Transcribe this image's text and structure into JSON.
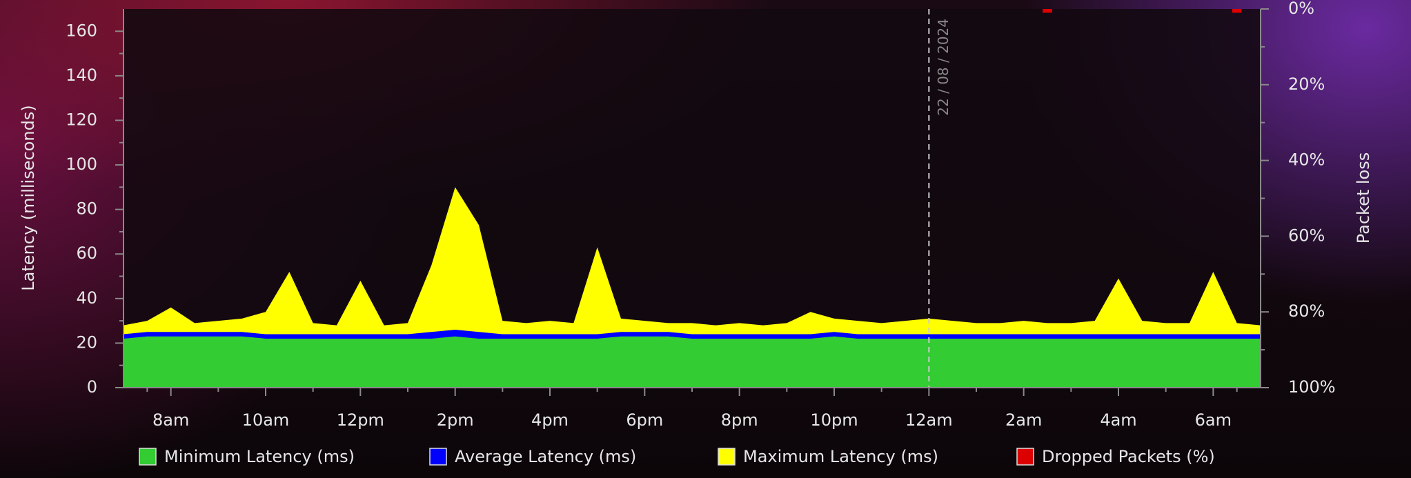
{
  "chart_data": {
    "type": "area",
    "y_label": "Latency (milliseconds)",
    "y2_label": "Packet loss",
    "xlim": [
      7,
      31
    ],
    "xticks": [
      {
        "value": 8,
        "label": "8am"
      },
      {
        "value": 10,
        "label": "10am"
      },
      {
        "value": 12,
        "label": "12pm"
      },
      {
        "value": 14,
        "label": "2pm"
      },
      {
        "value": 16,
        "label": "4pm"
      },
      {
        "value": 18,
        "label": "6pm"
      },
      {
        "value": 20,
        "label": "8pm"
      },
      {
        "value": 22,
        "label": "10pm"
      },
      {
        "value": 24,
        "label": "12am"
      },
      {
        "value": 26,
        "label": "2am"
      },
      {
        "value": 28,
        "label": "4am"
      },
      {
        "value": 30,
        "label": "6am"
      }
    ],
    "ylim": [
      0,
      170
    ],
    "yticks": [
      0,
      20,
      40,
      60,
      80,
      100,
      120,
      140,
      160
    ],
    "y2lim": [
      100,
      0
    ],
    "y2ticks": [
      {
        "value": 0,
        "label": "0%"
      },
      {
        "value": 20,
        "label": "20%"
      },
      {
        "value": 40,
        "label": "40%"
      },
      {
        "value": 60,
        "label": "60%"
      },
      {
        "value": 80,
        "label": "80%"
      },
      {
        "value": 100,
        "label": "100%"
      }
    ],
    "annotations": [
      {
        "x": 24,
        "label": "22 / 08 / 2024"
      }
    ],
    "x": [
      7,
      7.5,
      8,
      8.5,
      9,
      9.5,
      10,
      10.5,
      11,
      11.5,
      12,
      12.5,
      13,
      13.5,
      14,
      14.5,
      15,
      15.5,
      16,
      16.5,
      17,
      17.5,
      18,
      18.5,
      19,
      19.5,
      20,
      20.5,
      21,
      21.5,
      22,
      22.5,
      23,
      23.5,
      24,
      24.5,
      25,
      25.5,
      26,
      26.5,
      27,
      27.5,
      28,
      28.5,
      29,
      29.5,
      30,
      30.5,
      31
    ],
    "series": [
      {
        "name": "Minimum Latency (ms)",
        "color": "#33cc33",
        "values": [
          22,
          23,
          23,
          23,
          23,
          23,
          22,
          22,
          22,
          22,
          22,
          22,
          22,
          22,
          23,
          22,
          22,
          22,
          22,
          22,
          22,
          23,
          23,
          23,
          22,
          22,
          22,
          22,
          22,
          22,
          23,
          22,
          22,
          22,
          22,
          22,
          22,
          22,
          22,
          22,
          22,
          22,
          22,
          22,
          22,
          22,
          22,
          22,
          22
        ]
      },
      {
        "name": "Average Latency (ms)",
        "color": "#0000ff",
        "values": [
          24,
          25,
          25,
          25,
          25,
          25,
          24,
          24,
          24,
          24,
          24,
          24,
          24,
          25,
          26,
          25,
          24,
          24,
          24,
          24,
          24,
          25,
          25,
          25,
          24,
          24,
          24,
          24,
          24,
          24,
          25,
          24,
          24,
          24,
          24,
          24,
          24,
          24,
          24,
          24,
          24,
          24,
          24,
          24,
          24,
          24,
          24,
          24,
          24
        ]
      },
      {
        "name": "Maximum Latency (ms)",
        "color": "#ffff00",
        "values": [
          28,
          30,
          36,
          29,
          30,
          31,
          34,
          52,
          29,
          28,
          48,
          28,
          29,
          55,
          90,
          73,
          30,
          29,
          30,
          29,
          63,
          31,
          30,
          29,
          29,
          28,
          29,
          28,
          29,
          34,
          31,
          30,
          29,
          30,
          31,
          30,
          29,
          29,
          30,
          29,
          29,
          30,
          49,
          30,
          29,
          29,
          52,
          29,
          28
        ]
      },
      {
        "name": "Dropped Packets (%)",
        "color": "#dd0000",
        "axis": "y2",
        "values": [
          0,
          0,
          0,
          0,
          0,
          0,
          0,
          0,
          0,
          0,
          0,
          0,
          0,
          0,
          0,
          0,
          0,
          0,
          0,
          0,
          0,
          0,
          0,
          0,
          0,
          0,
          0,
          0,
          0,
          0,
          0,
          0,
          0,
          0,
          0,
          0,
          0,
          0,
          0,
          1,
          0,
          0,
          0,
          0,
          0,
          0,
          0,
          1,
          0
        ]
      }
    ]
  }
}
